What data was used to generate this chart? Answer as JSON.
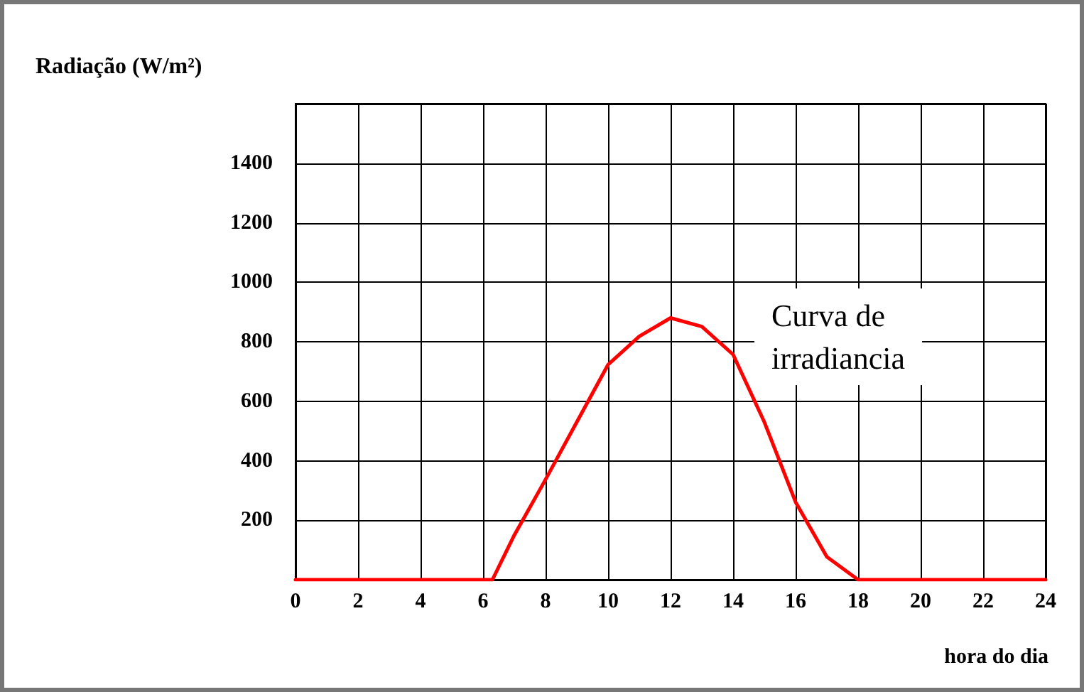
{
  "chart_data": {
    "type": "line",
    "ylabel": "Radiação (W/m²)",
    "xlabel": "hora do dia",
    "annotations": [
      "Curva de irradiancia"
    ],
    "x": [
      0,
      2,
      4,
      6,
      6.3,
      7,
      8,
      9,
      10,
      11,
      12,
      13,
      14,
      15,
      16,
      17,
      18,
      20,
      22,
      24
    ],
    "series": [
      {
        "color": "#ff0000",
        "values": [
          0,
          0,
          0,
          0,
          0,
          150,
          337,
          530,
          723,
          818,
          880,
          851,
          757,
          530,
          261,
          77,
          0,
          0,
          0,
          0
        ]
      }
    ],
    "xlim": [
      0,
      24
    ],
    "xticks": [
      0,
      2,
      4,
      6,
      8,
      10,
      12,
      14,
      16,
      18,
      20,
      22,
      24
    ],
    "ylim": [
      0,
      1600
    ],
    "yticks": [
      {
        "value": 0,
        "label": null
      },
      200,
      400,
      600,
      800,
      1000,
      1200,
      1400,
      {
        "value": 1600,
        "label": null
      }
    ],
    "grid": true,
    "marker": "none",
    "line_style": "solid"
  }
}
